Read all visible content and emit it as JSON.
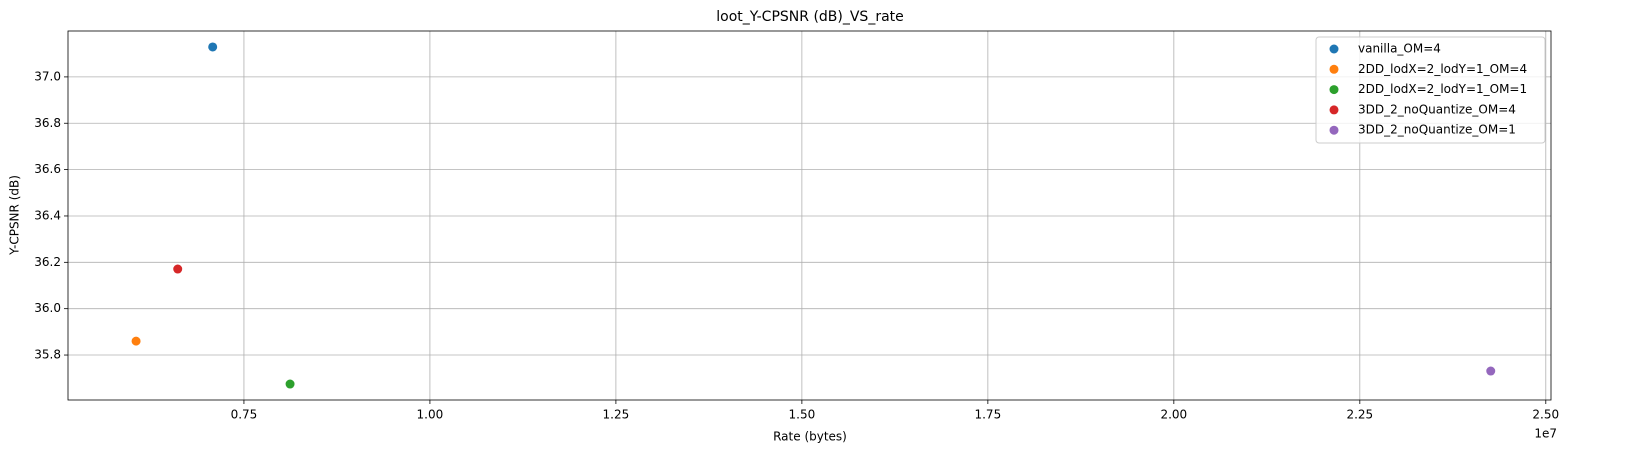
{
  "chart_data": {
    "type": "scatter",
    "title": "loot_Y-CPSNR (dB)_VS_rate",
    "x_label": "Rate (bytes)",
    "y_label": "Y-CPSNR (dB)",
    "x_offset_label": "1e7",
    "series": [
      {
        "name": "vanilla_OM=4",
        "color": "#1f77b4",
        "x": [
          0.708
        ],
        "values": [
          37.129
        ]
      },
      {
        "name": "2DD_lodX=2_lodY=1_OM=4",
        "color": "#ff7f0e",
        "x": [
          0.605
        ],
        "values": [
          35.86
        ]
      },
      {
        "name": "2DD_lodX=2_lodY=1_OM=1",
        "color": "#2ca02c",
        "x": [
          0.812
        ],
        "values": [
          35.675
        ]
      },
      {
        "name": "3DD_2_noQuantize_OM=4",
        "color": "#d62728",
        "x": [
          0.661
        ],
        "values": [
          36.171
        ]
      },
      {
        "name": "3DD_2_noQuantize_OM=1",
        "color": "#9467bd",
        "x": [
          2.426
        ],
        "values": [
          35.731
        ]
      }
    ],
    "xlim": [
      0.5135,
      2.507
    ],
    "xticks": [
      0.75,
      {
        "value": 1,
        "label": "1.00"
      },
      1.25,
      {
        "value": 1.5,
        "label": "1.50"
      },
      1.75,
      {
        "value": 2,
        "label": "2.00"
      },
      2.25,
      {
        "value": 2.5,
        "label": "2.50"
      }
    ],
    "ylim": [
      35.606,
      37.198
    ],
    "yticks": [
      35.8,
      {
        "value": 36,
        "label": "36.0"
      },
      36.2,
      36.4,
      36.6,
      36.8,
      {
        "value": 37,
        "label": "37.0"
      }
    ],
    "grid": true,
    "legend": "upper right"
  }
}
